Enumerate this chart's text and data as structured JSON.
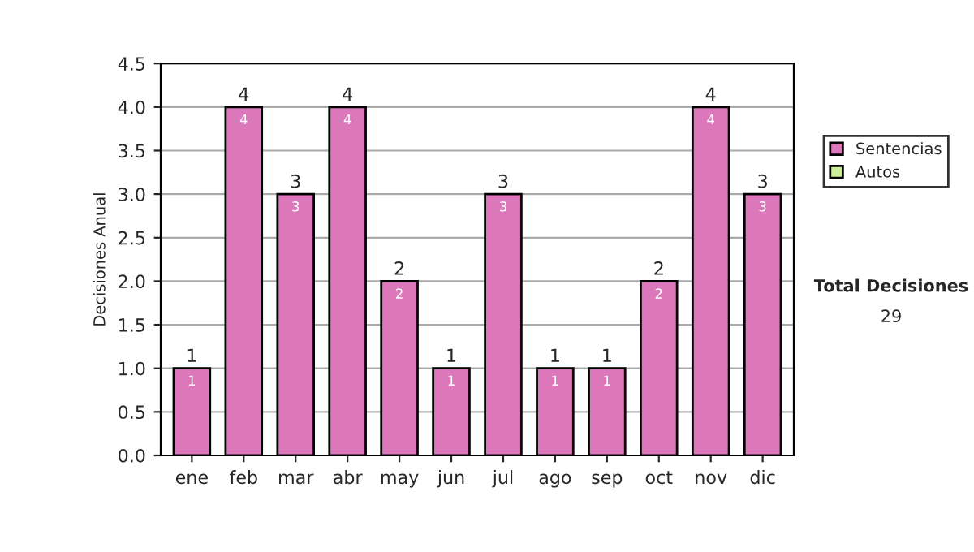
{
  "chart_data": {
    "type": "bar",
    "stacked": true,
    "ylabel": "Decisiones Anual",
    "categories": [
      "ene",
      "feb",
      "mar",
      "abr",
      "may",
      "jun",
      "jul",
      "ago",
      "sep",
      "oct",
      "nov",
      "dic"
    ],
    "series": [
      {
        "name": "Sentencias",
        "color": "#dd77bb",
        "values": [
          1,
          4,
          3,
          4,
          2,
          1,
          3,
          1,
          1,
          2,
          4,
          3
        ],
        "value_labels": [
          "1",
          "4",
          "3",
          "4",
          "2",
          "1",
          "3",
          "1",
          "1",
          "2",
          "4",
          "3"
        ]
      },
      {
        "name": "Autos",
        "color": "#ccee99",
        "values": [
          null,
          null,
          null,
          null,
          null,
          null,
          null,
          null,
          null,
          null,
          null,
          null
        ]
      }
    ],
    "totals": [
      "1",
      "4",
      "3",
      "4",
      "2",
      "1",
      "3",
      "1",
      "1",
      "2",
      "4",
      "3"
    ],
    "ylim": [
      0,
      4.5
    ],
    "yticks": [
      {
        "value": 0,
        "label": "0.0"
      },
      {
        "value": 0.5,
        "label": "0.5"
      },
      {
        "value": 1,
        "label": "1.0"
      },
      {
        "value": 1.5,
        "label": "1.5"
      },
      {
        "value": 2,
        "label": "2.0"
      },
      {
        "value": 2.5,
        "label": "2.5"
      },
      {
        "value": 3,
        "label": "3.0"
      },
      {
        "value": 3.5,
        "label": "3.5"
      },
      {
        "value": 4,
        "label": "4.0"
      },
      {
        "value": 4.5,
        "label": "4.5"
      }
    ],
    "grid": "y",
    "legend": "right",
    "annotations": [
      "Total Decisiones",
      "29"
    ]
  }
}
